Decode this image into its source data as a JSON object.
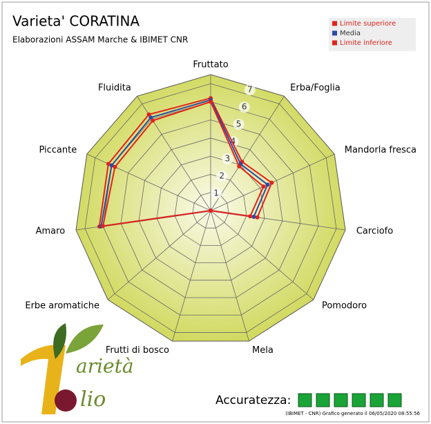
{
  "chart_data": {
    "type": "radar",
    "title": "Varieta' CORATINA",
    "subtitle": "Elaborazioni ASSAM Marche & IBIMET CNR",
    "categories": [
      "Fruttato",
      "Erba/Foglia",
      "Mandorla fresca",
      "Carciofo",
      "Pomodoro",
      "Mela",
      "Frutti di bosco",
      "Erbe aromatiche",
      "Amaro",
      "Piccante",
      "Fluidita"
    ],
    "series": [
      {
        "name": "Limite superiore",
        "color": "#e0231c",
        "values": [
          6.2,
          3.2,
          3.7,
          2.6,
          0,
          0,
          0,
          0,
          6.2,
          6.2,
          6.3
        ]
      },
      {
        "name": "Media",
        "color": "#2a4aa8",
        "values": [
          6.1,
          3.05,
          3.45,
          2.4,
          0,
          0,
          0,
          0,
          6.1,
          6.0,
          6.1
        ]
      },
      {
        "name": "Limite inferiore",
        "color": "#e0231c",
        "values": [
          6.0,
          2.9,
          3.2,
          2.2,
          0,
          0,
          0,
          0,
          6.0,
          5.8,
          5.9
        ]
      }
    ],
    "rlim": [
      0,
      7.5
    ],
    "rticks": [
      1,
      2,
      3,
      4,
      5,
      6,
      7
    ],
    "grid": true,
    "legend": "top-right",
    "accuracy_label": "Accuratezza:",
    "accuracy": 6,
    "footnote": "(IBIMET - CNR) Grafico generato il 06/05/2020 08:55:56",
    "logo": [
      "arietà",
      "lio"
    ]
  }
}
